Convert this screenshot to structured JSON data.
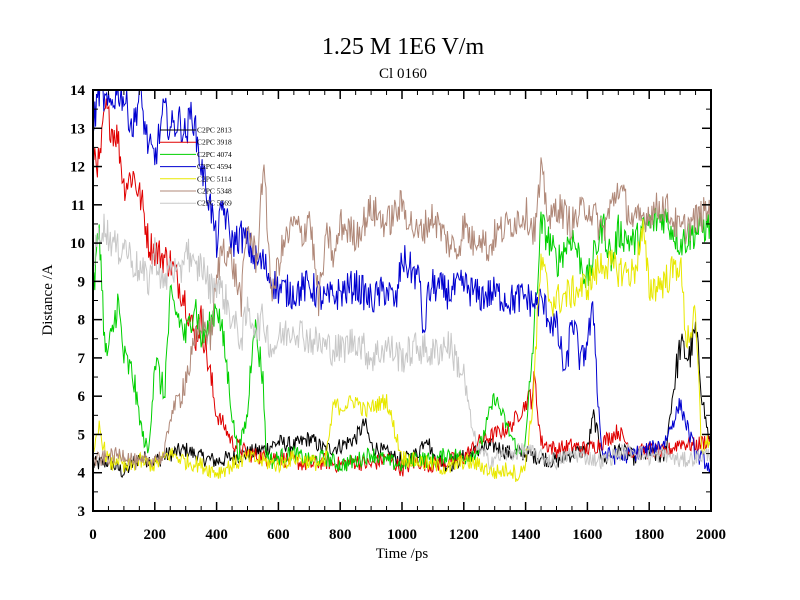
{
  "chart_data": {
    "type": "line",
    "title": "1.25 M 1E6 V/m",
    "subtitle": "Cl 0160",
    "xlabel": "Time /ps",
    "ylabel": "Distance /A",
    "xlim": [
      0,
      2000
    ],
    "ylim": [
      3,
      14
    ],
    "xticks": [
      0,
      200,
      400,
      600,
      800,
      1000,
      1200,
      1400,
      1600,
      1800,
      2000
    ],
    "yticks": [
      3,
      4,
      5,
      6,
      7,
      8,
      9,
      10,
      11,
      12,
      13,
      14
    ],
    "grid": false,
    "legend_position": "top-left",
    "series": [
      {
        "name": "C2PC 2813",
        "color": "#000000",
        "x": [
          0,
          50,
          100,
          150,
          200,
          250,
          300,
          350,
          400,
          450,
          500,
          550,
          600,
          650,
          700,
          750,
          800,
          850,
          880,
          900,
          950,
          1000,
          1050,
          1080,
          1100,
          1150,
          1200,
          1250,
          1300,
          1350,
          1400,
          1450,
          1500,
          1550,
          1600,
          1620,
          1650,
          1700,
          1750,
          1800,
          1850,
          1880,
          1900,
          1930,
          1950,
          1980,
          2000
        ],
        "y": [
          4.2,
          4.3,
          4.0,
          4.4,
          4.3,
          4.5,
          4.6,
          4.4,
          4.3,
          4.4,
          4.5,
          4.6,
          4.8,
          4.7,
          4.9,
          4.6,
          4.7,
          4.9,
          5.3,
          4.7,
          4.5,
          4.3,
          4.5,
          5.0,
          4.4,
          4.2,
          4.4,
          4.6,
          4.7,
          4.5,
          4.5,
          4.4,
          4.3,
          4.5,
          4.6,
          5.5,
          4.3,
          4.6,
          4.4,
          4.5,
          4.4,
          6.3,
          7.3,
          7.0,
          7.7,
          5.5,
          4.6
        ]
      },
      {
        "name": "C2PC 3918",
        "color": "#e00000",
        "x": [
          0,
          20,
          40,
          60,
          80,
          100,
          130,
          160,
          180,
          200,
          250,
          300,
          330,
          350,
          380,
          400,
          420,
          450,
          500,
          550,
          600,
          650,
          700,
          750,
          800,
          850,
          900,
          950,
          1000,
          1050,
          1100,
          1150,
          1200,
          1250,
          1300,
          1350,
          1400,
          1430,
          1450,
          1500,
          1550,
          1600,
          1650,
          1700,
          1750,
          1800,
          1850,
          1900,
          1950,
          2000
        ],
        "y": [
          12.5,
          12.0,
          13.5,
          13.0,
          12.8,
          11.5,
          11.8,
          11.0,
          10.0,
          9.8,
          9.5,
          8.5,
          7.5,
          8.0,
          6.5,
          5.5,
          5.3,
          4.8,
          4.5,
          4.4,
          4.4,
          4.3,
          4.2,
          4.3,
          4.2,
          4.3,
          4.2,
          4.4,
          4.1,
          4.3,
          4.2,
          4.3,
          4.4,
          4.8,
          5.0,
          5.2,
          5.8,
          6.3,
          4.8,
          4.6,
          4.7,
          4.6,
          4.8,
          5.1,
          4.5,
          4.6,
          4.5,
          4.8,
          4.7,
          4.9
        ]
      },
      {
        "name": "C2PC 4074",
        "color": "#00d000",
        "x": [
          0,
          20,
          40,
          60,
          80,
          100,
          130,
          160,
          180,
          200,
          230,
          250,
          280,
          300,
          330,
          350,
          380,
          400,
          430,
          450,
          470,
          500,
          520,
          550,
          560,
          580,
          600,
          650,
          700,
          750,
          800,
          850,
          900,
          950,
          1000,
          1050,
          1100,
          1150,
          1200,
          1250,
          1300,
          1350,
          1380,
          1400,
          1430,
          1450,
          1480,
          1500,
          1550,
          1600,
          1650,
          1680,
          1700,
          1750,
          1800,
          1850,
          1900,
          1950,
          2000
        ],
        "y": [
          8.5,
          10.5,
          7.0,
          7.5,
          8.5,
          7.0,
          6.5,
          5.0,
          4.5,
          7.0,
          6.0,
          8.5,
          8.0,
          7.5,
          8.5,
          7.5,
          7.8,
          8.5,
          7.0,
          5.5,
          4.5,
          5.5,
          8.0,
          6.5,
          4.5,
          4.3,
          4.4,
          4.5,
          4.3,
          4.4,
          4.2,
          4.3,
          4.5,
          4.3,
          4.2,
          4.4,
          4.3,
          4.5,
          4.4,
          4.6,
          6.0,
          5.0,
          4.5,
          4.8,
          8.0,
          10.5,
          10.0,
          9.5,
          10.2,
          9.0,
          10.5,
          9.5,
          10.3,
          10.0,
          10.5,
          10.7,
          10.0,
          10.3,
          10.5
        ]
      },
      {
        "name": "C2PC 4594",
        "color": "#0000d0",
        "x": [
          0,
          20,
          50,
          80,
          100,
          130,
          150,
          180,
          200,
          230,
          250,
          280,
          300,
          320,
          350,
          380,
          400,
          420,
          450,
          480,
          500,
          530,
          550,
          580,
          600,
          650,
          700,
          750,
          800,
          850,
          900,
          950,
          980,
          1000,
          1030,
          1060,
          1070,
          1080,
          1100,
          1150,
          1200,
          1250,
          1300,
          1350,
          1400,
          1430,
          1450,
          1480,
          1500,
          1530,
          1550,
          1580,
          1600,
          1620,
          1640,
          1650,
          1700,
          1750,
          1800,
          1850,
          1900,
          1950,
          1980,
          2000
        ],
        "y": [
          13.0,
          14.0,
          13.5,
          14.0,
          13.8,
          13.0,
          13.9,
          12.5,
          12.2,
          13.5,
          13.0,
          13.2,
          12.8,
          13.5,
          12.0,
          11.0,
          10.0,
          11.0,
          10.0,
          10.2,
          10.0,
          9.5,
          9.5,
          9.0,
          8.8,
          8.7,
          8.9,
          8.5,
          8.7,
          8.9,
          8.5,
          8.8,
          8.4,
          9.6,
          9.3,
          9.0,
          7.3,
          8.5,
          8.9,
          8.7,
          8.9,
          8.6,
          8.7,
          8.5,
          8.6,
          8.4,
          8.5,
          8.0,
          7.8,
          6.5,
          8.1,
          6.8,
          7.5,
          8.2,
          5.2,
          4.5,
          4.4,
          4.5,
          4.6,
          4.8,
          5.8,
          4.5,
          4.3,
          4.1
        ]
      },
      {
        "name": "C2PC 5114",
        "color": "#e8e800",
        "x": [
          0,
          20,
          40,
          60,
          80,
          100,
          150,
          200,
          250,
          300,
          350,
          400,
          450,
          500,
          550,
          600,
          650,
          700,
          750,
          780,
          800,
          850,
          880,
          900,
          950,
          1000,
          1050,
          1100,
          1150,
          1200,
          1250,
          1300,
          1350,
          1380,
          1400,
          1420,
          1450,
          1480,
          1500,
          1550,
          1600,
          1650,
          1700,
          1750,
          1780,
          1800,
          1850,
          1900,
          1920,
          1950,
          1970,
          2000
        ],
        "y": [
          4.3,
          5.2,
          4.5,
          4.2,
          4.4,
          4.1,
          4.3,
          4.2,
          4.5,
          4.3,
          4.2,
          4.0,
          4.2,
          4.4,
          4.3,
          4.2,
          4.4,
          4.3,
          4.2,
          5.8,
          5.7,
          5.9,
          5.6,
          5.7,
          5.9,
          4.4,
          4.3,
          4.2,
          4.1,
          4.3,
          4.2,
          4.0,
          4.1,
          3.9,
          4.3,
          5.5,
          9.5,
          8.5,
          8.5,
          8.7,
          8.9,
          9.5,
          9.3,
          9.2,
          10.3,
          8.8,
          9.0,
          9.5,
          7.5,
          8.0,
          4.6,
          4.9
        ]
      },
      {
        "name": "C2PC 5348",
        "color": "#b08878",
        "x": [
          0,
          50,
          100,
          150,
          200,
          230,
          250,
          280,
          300,
          320,
          350,
          380,
          400,
          420,
          450,
          480,
          500,
          530,
          550,
          560,
          580,
          600,
          620,
          650,
          680,
          700,
          730,
          760,
          780,
          800,
          850,
          880,
          900,
          950,
          1000,
          1050,
          1100,
          1150,
          1180,
          1200,
          1230,
          1250,
          1280,
          1300,
          1350,
          1400,
          1430,
          1450,
          1480,
          1500,
          1550,
          1600,
          1650,
          1700,
          1750,
          1800,
          1850,
          1900,
          1950,
          2000
        ],
        "y": [
          4.3,
          4.4,
          4.5,
          4.2,
          4.4,
          4.4,
          5.5,
          6.0,
          6.5,
          7.0,
          8.0,
          7.5,
          9.0,
          10.0,
          9.5,
          8.5,
          10.5,
          9.5,
          12.0,
          11.0,
          8.5,
          9.5,
          10.0,
          10.5,
          10.2,
          10.8,
          8.5,
          10.3,
          9.5,
          10.5,
          10.2,
          10.6,
          10.9,
          10.5,
          11.0,
          10.2,
          10.7,
          10.0,
          9.8,
          10.5,
          10.0,
          10.3,
          9.8,
          10.2,
          10.5,
          10.8,
          10.3,
          11.8,
          10.5,
          11.0,
          10.5,
          11.0,
          10.3,
          11.5,
          10.5,
          10.8,
          11.0,
          10.3,
          10.6,
          10.9
        ]
      },
      {
        "name": "C2PC 5569",
        "color": "#c8c8c8",
        "x": [
          0,
          30,
          50,
          80,
          100,
          130,
          150,
          180,
          200,
          230,
          250,
          280,
          300,
          330,
          350,
          380,
          400,
          430,
          450,
          480,
          500,
          530,
          550,
          580,
          600,
          650,
          700,
          750,
          800,
          850,
          900,
          950,
          1000,
          1050,
          1100,
          1150,
          1200,
          1230,
          1250,
          1280,
          1300,
          1350,
          1400,
          1450,
          1500,
          1550,
          1600,
          1650,
          1700,
          1750,
          1800,
          1850,
          1900,
          1950,
          2000
        ],
        "y": [
          9.5,
          10.5,
          10.2,
          9.8,
          10.0,
          9.5,
          9.3,
          9.0,
          9.8,
          8.8,
          9.5,
          9.0,
          10.0,
          9.2,
          9.5,
          8.8,
          9.0,
          8.5,
          8.0,
          7.5,
          8.2,
          7.8,
          8.0,
          7.2,
          7.5,
          7.8,
          7.5,
          7.3,
          7.2,
          7.5,
          7.0,
          7.3,
          7.0,
          7.3,
          7.1,
          7.4,
          6.5,
          5.0,
          4.6,
          4.3,
          4.4,
          4.5,
          4.6,
          4.4,
          4.3,
          4.5,
          4.4,
          4.3,
          4.5,
          4.6,
          4.4,
          4.5,
          4.3,
          4.4,
          4.5
        ]
      }
    ]
  }
}
